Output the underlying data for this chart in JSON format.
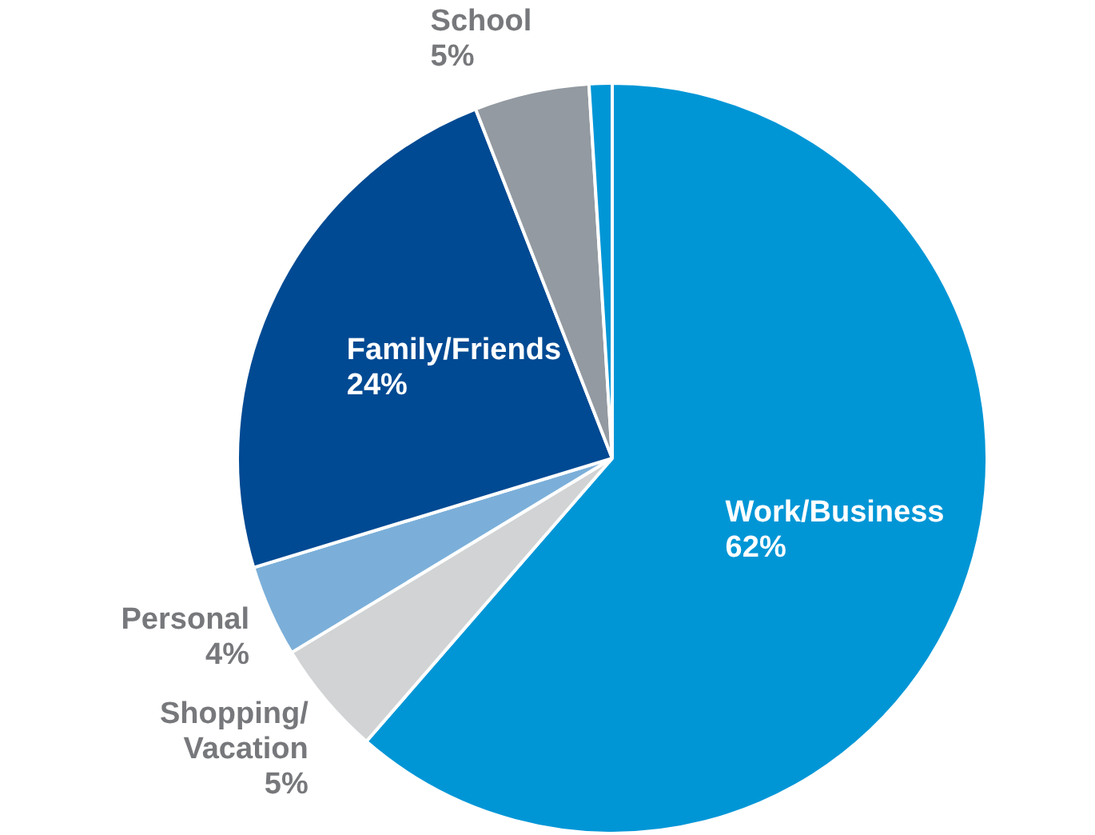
{
  "chart_data": {
    "type": "pie",
    "categories": [
      "Work/Business",
      "Shopping/Vacation",
      "Personal",
      "Family/Friends",
      "School",
      null
    ],
    "values": [
      62,
      5,
      4,
      24,
      5,
      1
    ],
    "value_labels": [
      "62%",
      "5%",
      "4%",
      "24%",
      "5%",
      null
    ],
    "colors": [
      "#0096d6",
      "#d1d3d4",
      "#7bafd9",
      "#004a93",
      "#939aa1",
      "#0096d6"
    ],
    "legend": false
  }
}
